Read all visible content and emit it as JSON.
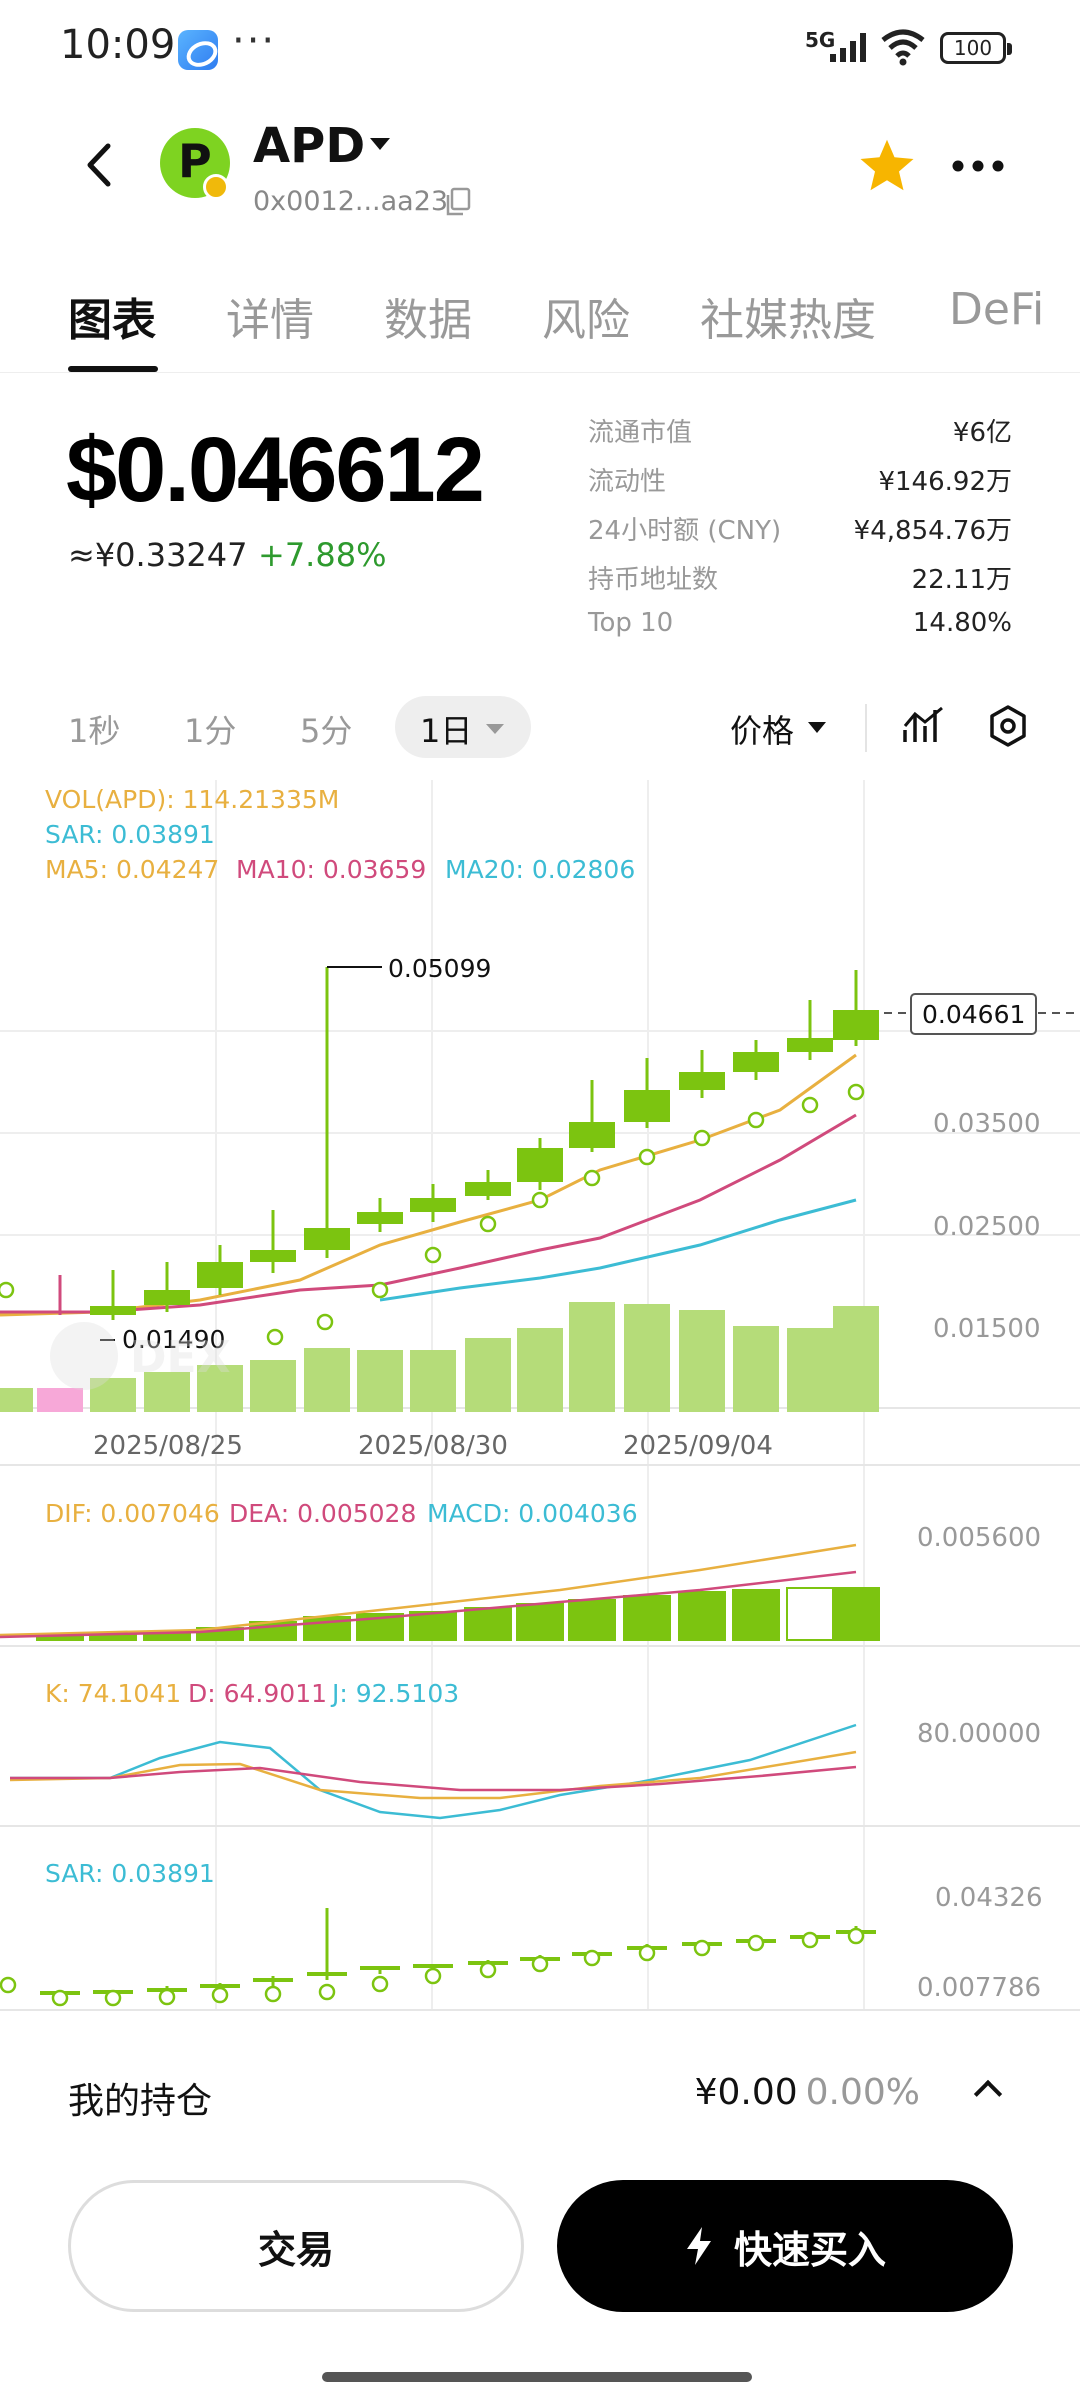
{
  "status_bar": {
    "time": "10:09",
    "more": "···",
    "network": "5G",
    "battery": "100",
    "icons": [
      "app-notification-icon",
      "signal-icon",
      "wifi-icon",
      "battery-icon"
    ]
  },
  "header": {
    "symbol": "APD",
    "address": "0x0012...aa23",
    "icons": [
      "back-icon",
      "token-logo",
      "copy-icon",
      "star-icon",
      "more-icon"
    ]
  },
  "tabs": [
    "图表",
    "详情",
    "数据",
    "风险",
    "社媒热度",
    "DeFi"
  ],
  "active_tab": "图表",
  "price": {
    "usd": "$0.046612",
    "cny": "≈¥0.33247",
    "change": "+7.88%"
  },
  "stats": [
    {
      "label": "流通市值",
      "value": "¥6亿"
    },
    {
      "label": "流动性",
      "value": "¥146.92万"
    },
    {
      "label": "24小时额 (CNY)",
      "value": "¥4,854.76万"
    },
    {
      "label": "持币地址数",
      "value": "22.11万"
    },
    {
      "label": "Top 10",
      "value": "14.80%"
    }
  ],
  "timeframes": [
    "1秒",
    "1分",
    "5分",
    "1日"
  ],
  "selected_timeframe": "1日",
  "price_type": "价格",
  "chart": {
    "vol_label": "VOL(APD): 114.21335M",
    "sar_label": "SAR: 0.03891",
    "ma5": "MA5: 0.04247",
    "ma10": "MA10: 0.03659",
    "ma20": "MA20: 0.02806",
    "high_marker": "0.05099",
    "low_marker": "0.01490",
    "current_price_tag": "0.04661",
    "y_ticks": [
      "0.03500",
      "0.02500",
      "0.01500"
    ],
    "x_ticks": [
      "2025/08/25",
      "2025/08/30",
      "2025/09/04"
    ],
    "watermark": "DEX",
    "macd_label_dif": "DIF: 0.007046",
    "macd_label_dea": "DEA: 0.005028",
    "macd_label_macd": "MACD: 0.004036",
    "macd_tick": "0.005600",
    "kdj_label_k": "K: 74.1041",
    "kdj_label_d": "D: 64.9011",
    "kdj_label_j": "J: 92.5103",
    "kdj_tick": "80.00000",
    "sar2_label": "SAR: 0.03891",
    "sar2_ticks": [
      "0.04326",
      "0.007786"
    ],
    "colors": {
      "up": "#7cc410",
      "vol": "#b5dc79",
      "down_vol": "#f7a8d8",
      "ma5": "#e8b040",
      "ma10": "#d04a7c",
      "ma20": "#3cbcd4",
      "grid": "#eeeeee"
    }
  },
  "holdings": {
    "title": "我的持仓",
    "value": "¥0.00",
    "pct": "0.00%"
  },
  "buttons": {
    "trade": "交易",
    "quick_buy": "快速买入"
  }
}
